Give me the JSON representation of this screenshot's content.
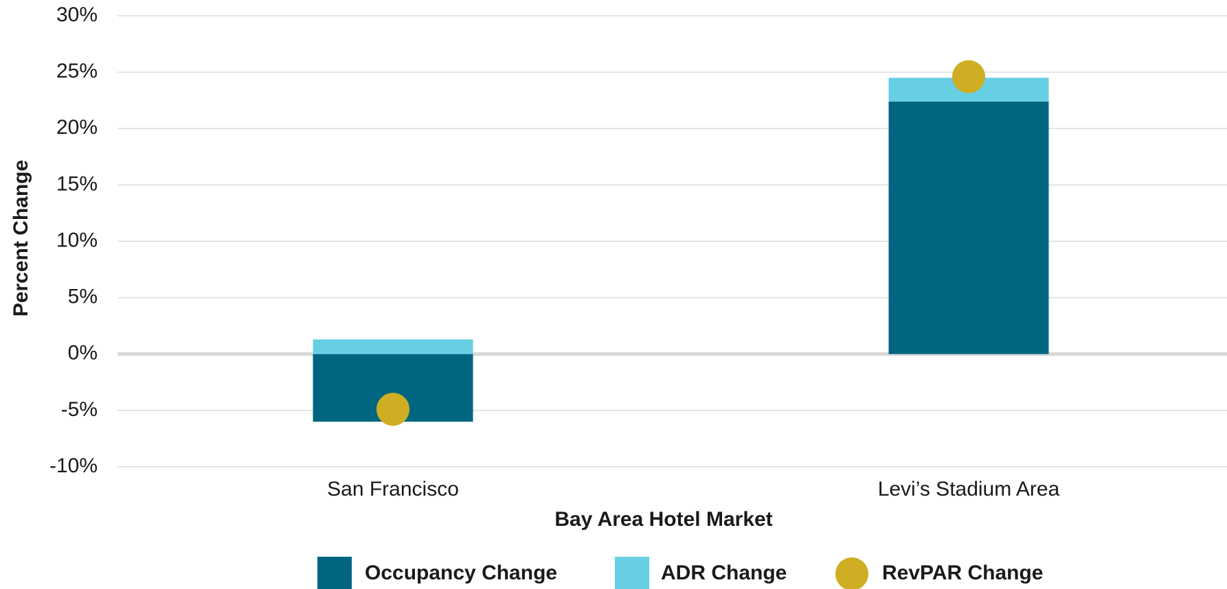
{
  "chart_data": {
    "type": "bar",
    "stacked": true,
    "x_label": "Bay Area Hotel Market",
    "y_label": "Percent Change",
    "categories": [
      "San Francisco",
      "Levi’s Stadium Area"
    ],
    "series": [
      {
        "name": "Occupancy Change",
        "type": "bar",
        "color": "#006680",
        "values": [
          -6.0,
          22.4
        ]
      },
      {
        "name": "ADR Change",
        "type": "bar",
        "color": "#67cfe3",
        "values": [
          1.3,
          2.1
        ]
      },
      {
        "name": "RevPAR Change",
        "type": "scatter",
        "color": "#cfae24",
        "values": [
          -4.9,
          24.6
        ]
      }
    ],
    "ylim": [
      -10,
      30
    ],
    "yticks": [
      {
        "value": -10,
        "label": "-10%"
      },
      {
        "value": -5,
        "label": "-5%"
      },
      {
        "value": 0,
        "label": "0%"
      },
      {
        "value": 5,
        "label": "5%"
      },
      {
        "value": 10,
        "label": "10%"
      },
      {
        "value": 15,
        "label": "15%"
      },
      {
        "value": 20,
        "label": "20%"
      },
      {
        "value": 25,
        "label": "25%"
      },
      {
        "value": 30,
        "label": "30%"
      }
    ],
    "grid": true,
    "legend": "bottom"
  }
}
